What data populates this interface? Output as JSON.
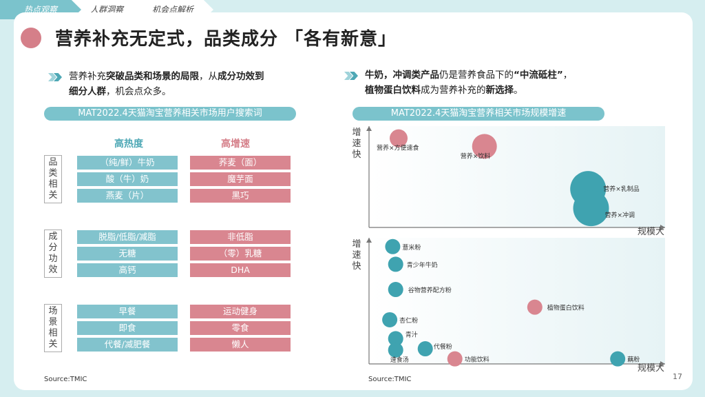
{
  "nav": {
    "tabs": [
      {
        "label": "热点观察"
      },
      {
        "label": "人群洞察"
      },
      {
        "label": "机会点解析"
      }
    ]
  },
  "page": {
    "title": "营养补充无定式，品类成分 「各有新意」",
    "number": "17"
  },
  "left": {
    "bullet_line1": {
      "p1": "营养补充",
      "b1": "突破品类和场景的局限",
      "p2": "，从",
      "b2": "成分功效到"
    },
    "bullet_line2": {
      "b1": "细分人群",
      "p1": "，机会点众多。"
    },
    "header": "MAT2022.4天猫淘宝营养相关市场用户搜索词",
    "col_hot": "高热度",
    "col_fast": "高增速",
    "groups": [
      {
        "label": [
          "品",
          "类",
          "相",
          "关"
        ],
        "hot": [
          "（纯/鲜）牛奶",
          "酸（牛）奶",
          "燕麦（片）"
        ],
        "fast": [
          "荞麦（面）",
          "魔芋面",
          "黑巧"
        ]
      },
      {
        "label": [
          "成",
          "分",
          "功",
          "效"
        ],
        "hot": [
          "脱脂/低脂/减脂",
          "无糖",
          "高钙"
        ],
        "fast": [
          "非低脂",
          "（零）乳糖",
          "DHA"
        ]
      },
      {
        "label": [
          "场",
          "景",
          "相",
          "关"
        ],
        "hot": [
          "早餐",
          "即食",
          "代餐/减肥餐"
        ],
        "fast": [
          "运动健身",
          "零食",
          "懒人"
        ]
      }
    ],
    "source": "Source:TMIC"
  },
  "right": {
    "bullet_line1": {
      "b1": "牛奶，冲调类产品",
      "p1": "仍是营养食品下的",
      "b2": "“中流砥柱”",
      "p2": "，"
    },
    "bullet_line2": {
      "b1": "植物蛋白饮料",
      "p1": "成为营养补充的",
      "b2": "新选择",
      "p2": "。"
    },
    "header": "MAT2022.4天猫淘宝营养相关市场规模增速",
    "source": "Source:TMIC"
  },
  "chart_data": [
    {
      "type": "scatter",
      "title": "",
      "xlabel": "规模大",
      "ylabel": "增速快",
      "colors": {
        "pink": "#d98690",
        "teal": "#3fa3b0"
      },
      "points": [
        {
          "label": "营养×方便速食",
          "x": 0.1,
          "y": 0.88,
          "size": 13,
          "color": "pink"
        },
        {
          "label": "营养×饮料",
          "x": 0.39,
          "y": 0.8,
          "size": 18,
          "color": "pink"
        },
        {
          "label": "营养×乳制品",
          "x": 0.74,
          "y": 0.38,
          "size": 26,
          "color": "teal"
        },
        {
          "label": "营养×冲调",
          "x": 0.75,
          "y": 0.19,
          "size": 26,
          "color": "teal"
        }
      ]
    },
    {
      "type": "scatter",
      "title": "",
      "xlabel": "规模大",
      "ylabel": "增速快",
      "colors": {
        "pink": "#d98690",
        "teal": "#3fa3b0"
      },
      "points": [
        {
          "label": "薏米粉",
          "x": 0.08,
          "y": 0.93,
          "size": 11,
          "color": "teal"
        },
        {
          "label": "青少年牛奶",
          "x": 0.09,
          "y": 0.79,
          "size": 11,
          "color": "teal"
        },
        {
          "label": "谷物营养配方粉",
          "x": 0.09,
          "y": 0.59,
          "size": 11,
          "color": "teal"
        },
        {
          "label": "植物蛋白饮料",
          "x": 0.56,
          "y": 0.45,
          "size": 11,
          "color": "pink"
        },
        {
          "label": "杏仁粉",
          "x": 0.07,
          "y": 0.35,
          "size": 11,
          "color": "teal"
        },
        {
          "label": "青汁",
          "x": 0.09,
          "y": 0.2,
          "size": 11,
          "color": "teal"
        },
        {
          "label": "代餐粉",
          "x": 0.19,
          "y": 0.12,
          "size": 11,
          "color": "teal"
        },
        {
          "label": "速食汤",
          "x": 0.09,
          "y": 0.11,
          "size": 11,
          "color": "teal"
        },
        {
          "label": "功能饮料",
          "x": 0.29,
          "y": 0.04,
          "size": 11,
          "color": "pink"
        },
        {
          "label": "藕粉",
          "x": 0.84,
          "y": 0.04,
          "size": 11,
          "color": "teal"
        }
      ]
    }
  ]
}
